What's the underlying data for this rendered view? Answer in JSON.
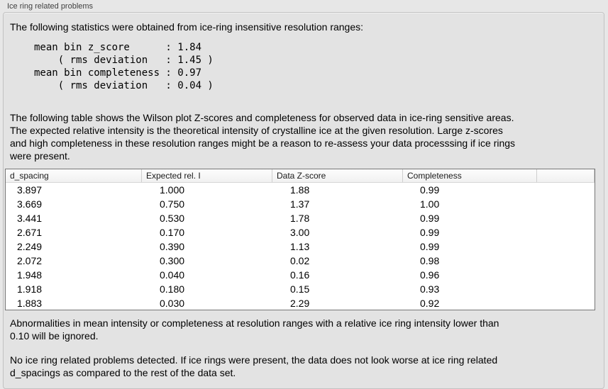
{
  "panel": {
    "title": "Ice ring related problems"
  },
  "intro_text": "The following statistics were obtained from ice-ring insensitive resolution ranges:",
  "stats_text": "mean bin z_score      : 1.84\n    ( rms deviation   : 1.45 )\nmean bin completeness : 0.97\n    ( rms deviation   : 0.04 )",
  "stats": {
    "mean_bin_z_score": 1.84,
    "z_score_rms_deviation": 1.45,
    "mean_bin_completeness": 0.97,
    "completeness_rms_deviation": 0.04
  },
  "description_text": "The following table shows the Wilson plot Z-scores and completeness for observed data in ice-ring sensitive areas.\nThe expected relative intensity is the theoretical intensity of crystalline ice at the given resolution. Large z-scores\nand high completeness in these resolution ranges might be a reason to re-assess your data processsing if ice rings\nwere present.",
  "table": {
    "headers": [
      "d_spacing",
      "Expected rel. I",
      "Data Z-score",
      "Completeness"
    ],
    "rows": [
      [
        "3.897",
        "1.000",
        "1.88",
        "0.99"
      ],
      [
        "3.669",
        "0.750",
        "1.37",
        "1.00"
      ],
      [
        "3.441",
        "0.530",
        "1.78",
        "0.99"
      ],
      [
        "2.671",
        "0.170",
        "3.00",
        "0.99"
      ],
      [
        "2.249",
        "0.390",
        "1.13",
        "0.99"
      ],
      [
        "2.072",
        "0.300",
        "0.02",
        "0.98"
      ],
      [
        "1.948",
        "0.040",
        "0.16",
        "0.96"
      ],
      [
        "1.918",
        "0.180",
        "0.15",
        "0.93"
      ],
      [
        "1.883",
        "0.030",
        "2.29",
        "0.92"
      ]
    ]
  },
  "ignore_note_text": "Abnormalities in mean intensity or completeness at resolution ranges with a relative ice ring intensity lower than\n0.10 will be ignored.",
  "conclusion_text": "No ice ring related problems detected. If ice rings were present, the data does not look worse at ice ring related\nd_spacings as compared to the rest of the data set.",
  "colors": {
    "page_background": "#e7e7e7",
    "groupbox_background": "#e3e3e3",
    "groupbox_border": "#c2c2c2",
    "table_border": "#767676",
    "table_header_background": "#f5f5f5",
    "text": "#000000"
  }
}
